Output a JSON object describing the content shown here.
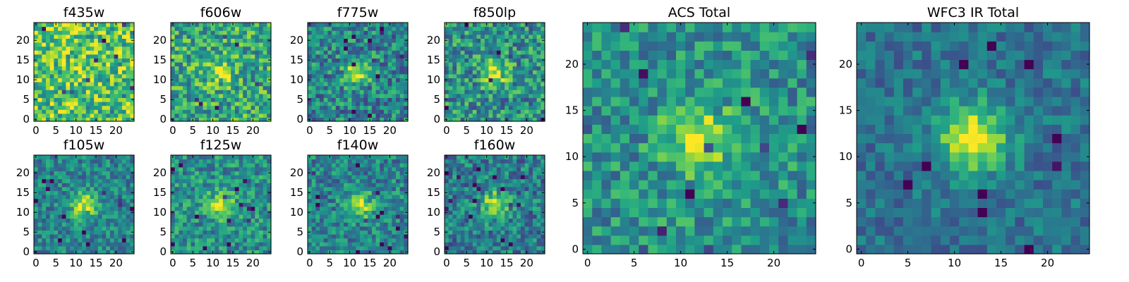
{
  "chart_data": {
    "type": "heatmap",
    "colormap": "viridis",
    "grid": false,
    "pixels": 25,
    "panels": [
      {
        "title": "f435w",
        "xticks": [
          0,
          5,
          10,
          15,
          20
        ],
        "yticks": [
          0,
          5,
          10,
          15,
          20
        ],
        "source_peak": 0.12,
        "noise": 0.3,
        "base": 0.73,
        "seed": 11
      },
      {
        "title": "f606w",
        "xticks": [
          0,
          5,
          10,
          15,
          20
        ],
        "yticks": [
          0,
          5,
          10,
          15,
          20
        ],
        "source_peak": 0.28,
        "noise": 0.28,
        "base": 0.6,
        "seed": 23
      },
      {
        "title": "f775w",
        "xticks": [
          0,
          5,
          10,
          15,
          20
        ],
        "yticks": [
          0,
          5,
          10,
          15,
          20
        ],
        "source_peak": 0.45,
        "noise": 0.26,
        "base": 0.45,
        "seed": 37
      },
      {
        "title": "f850lp",
        "xticks": [
          0,
          5,
          10,
          15,
          20
        ],
        "yticks": [
          0,
          5,
          10,
          15,
          20
        ],
        "source_peak": 0.4,
        "noise": 0.28,
        "base": 0.5,
        "seed": 41
      },
      {
        "title": "f105w",
        "xticks": [
          0,
          5,
          10,
          15,
          20
        ],
        "yticks": [
          0,
          5,
          10,
          15,
          20
        ],
        "source_peak": 0.5,
        "noise": 0.2,
        "base": 0.45,
        "seed": 53
      },
      {
        "title": "f125w",
        "xticks": [
          0,
          5,
          10,
          15,
          20
        ],
        "yticks": [
          0,
          5,
          10,
          15,
          20
        ],
        "source_peak": 0.45,
        "noise": 0.22,
        "base": 0.5,
        "seed": 67
      },
      {
        "title": "f140w",
        "xticks": [
          0,
          5,
          10,
          15,
          20
        ],
        "yticks": [
          0,
          5,
          10,
          15,
          20
        ],
        "source_peak": 0.5,
        "noise": 0.22,
        "base": 0.45,
        "seed": 71
      },
      {
        "title": "f160w",
        "xticks": [
          0,
          5,
          10,
          15,
          20
        ],
        "yticks": [
          0,
          5,
          10,
          15,
          20
        ],
        "source_peak": 0.5,
        "noise": 0.24,
        "base": 0.42,
        "seed": 83
      },
      {
        "title": "ACS Total",
        "xticks": [
          0,
          5,
          10,
          15,
          20
        ],
        "yticks": [
          0,
          5,
          10,
          15,
          20
        ],
        "source_peak": 0.45,
        "noise": 0.22,
        "base": 0.5,
        "seed": 97
      },
      {
        "title": "WFC3 IR Total",
        "xticks": [
          0,
          5,
          10,
          15,
          20
        ],
        "yticks": [
          0,
          5,
          10,
          15,
          20
        ],
        "source_peak": 0.6,
        "noise": 0.15,
        "base": 0.38,
        "seed": 101
      }
    ]
  }
}
